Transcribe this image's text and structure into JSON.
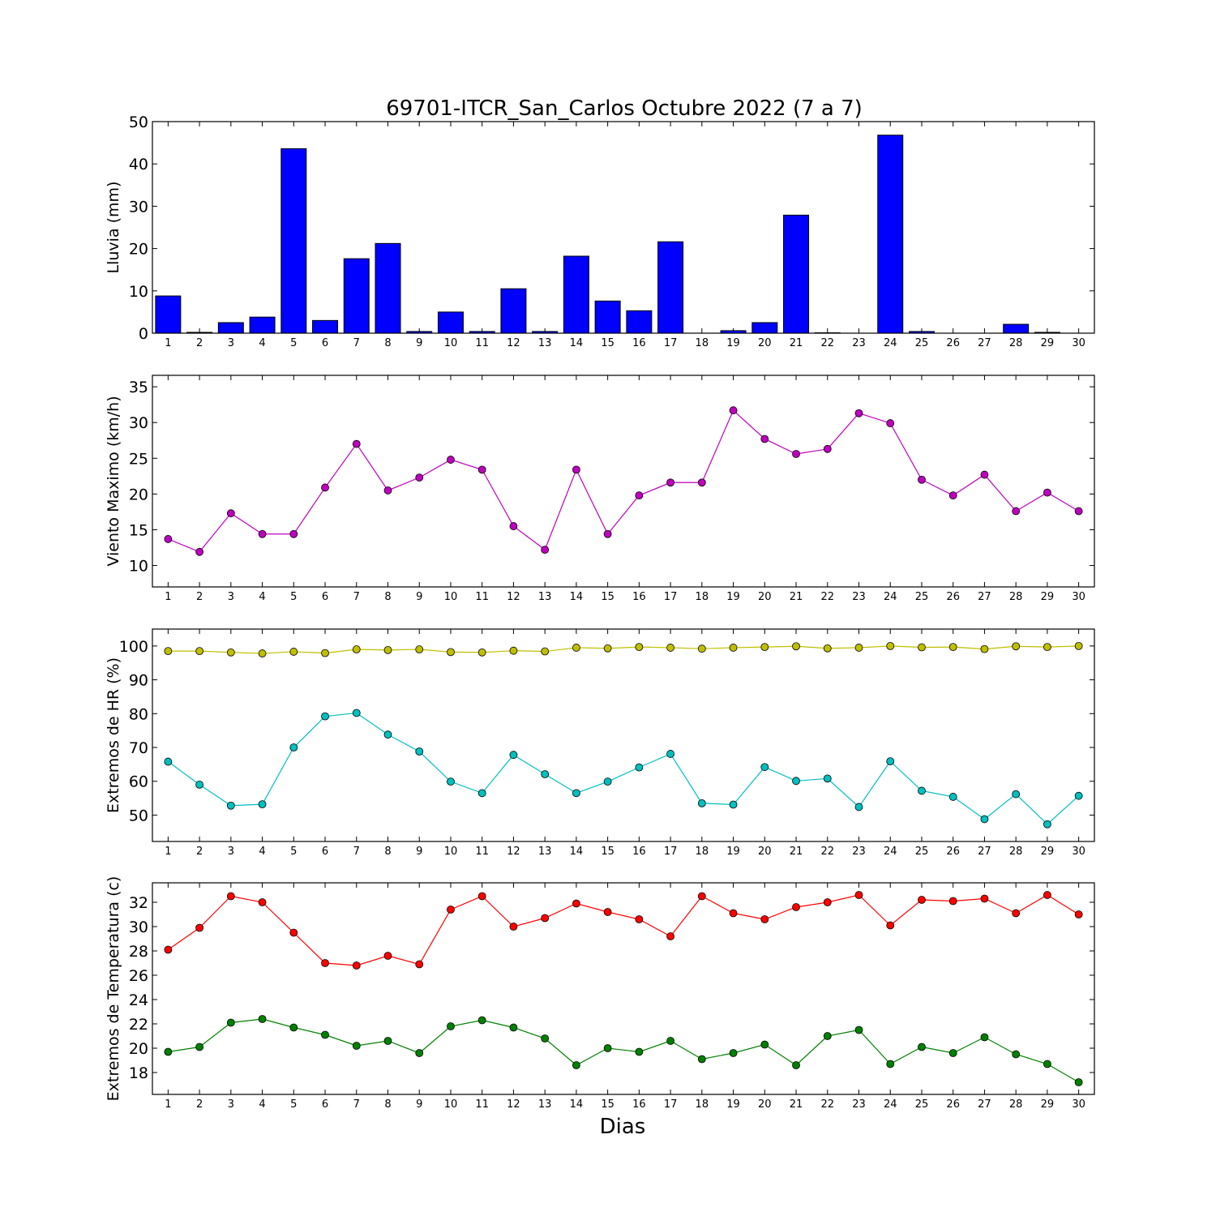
{
  "chart_data": [
    {
      "type": "bar",
      "title": "69701-ITCR_San_Carlos Octubre 2022  (7 a 7)",
      "ylabel": "Lluvia (mm)",
      "xlabel": "",
      "categories": [
        1,
        2,
        3,
        4,
        5,
        6,
        7,
        8,
        9,
        10,
        11,
        12,
        13,
        14,
        15,
        16,
        17,
        18,
        19,
        20,
        21,
        22,
        23,
        24,
        25,
        26,
        27,
        28,
        29,
        30
      ],
      "ylim": [
        0,
        50
      ],
      "yticks": [
        0,
        10,
        20,
        30,
        40,
        50
      ],
      "series": [
        {
          "color": "#0000ff",
          "values": [
            8.8,
            0.2,
            2.5,
            3.8,
            43.6,
            3.0,
            17.6,
            21.2,
            0.4,
            5.0,
            0.4,
            10.5,
            0.4,
            18.2,
            7.6,
            5.3,
            21.6,
            0.0,
            0.6,
            2.5,
            27.9,
            0.1,
            0.0,
            46.8,
            0.4,
            0.0,
            0.0,
            2.1,
            0.2,
            0.0
          ]
        }
      ],
      "grid": false
    },
    {
      "type": "line",
      "title": "",
      "ylabel": "Viento Maximo (km/h)",
      "xlabel": "",
      "x": [
        1,
        2,
        3,
        4,
        5,
        6,
        7,
        8,
        9,
        10,
        11,
        12,
        13,
        14,
        15,
        16,
        17,
        18,
        19,
        20,
        21,
        22,
        23,
        24,
        25,
        26,
        27,
        28,
        29,
        30
      ],
      "ylim": [
        7,
        36.6
      ],
      "yticks": [
        10,
        15,
        20,
        25,
        30,
        35
      ],
      "series": [
        {
          "color": "#bf00bf",
          "values": [
            13.7,
            11.9,
            17.3,
            14.4,
            14.4,
            20.9,
            27.0,
            20.5,
            22.3,
            24.8,
            23.4,
            15.5,
            12.2,
            23.4,
            14.4,
            19.8,
            21.6,
            21.6,
            31.7,
            27.7,
            25.6,
            26.3,
            31.3,
            29.9,
            22.0,
            19.8,
            22.7,
            17.6,
            20.2,
            17.6
          ]
        }
      ],
      "grid": false
    },
    {
      "type": "line",
      "title": "",
      "ylabel": "Extremos de HR (%)",
      "xlabel": "",
      "x": [
        1,
        2,
        3,
        4,
        5,
        6,
        7,
        8,
        9,
        10,
        11,
        12,
        13,
        14,
        15,
        16,
        17,
        18,
        19,
        20,
        21,
        22,
        23,
        24,
        25,
        26,
        27,
        28,
        29,
        30
      ],
      "ylim": [
        42.2,
        105
      ],
      "yticks": [
        50,
        60,
        70,
        80,
        90,
        100
      ],
      "series": [
        {
          "color": "#bfbf00",
          "values": [
            98.5,
            98.5,
            98.1,
            97.8,
            98.3,
            97.9,
            99.0,
            98.8,
            99.0,
            98.2,
            98.1,
            98.6,
            98.4,
            99.5,
            99.3,
            99.7,
            99.5,
            99.2,
            99.5,
            99.7,
            99.9,
            99.3,
            99.5,
            100.0,
            99.6,
            99.7,
            99.1,
            99.9,
            99.7,
            100.0
          ]
        },
        {
          "color": "#00bfbf",
          "values": [
            65.8,
            59.0,
            52.8,
            53.2,
            70.0,
            79.2,
            80.2,
            73.8,
            68.8,
            59.9,
            56.5,
            67.8,
            62.1,
            56.5,
            59.9,
            64.1,
            68.1,
            53.5,
            53.1,
            64.2,
            60.1,
            60.8,
            52.4,
            65.9,
            57.2,
            55.4,
            48.8,
            56.2,
            47.3,
            55.7
          ]
        }
      ],
      "grid": false
    },
    {
      "type": "line",
      "title": "",
      "ylabel": "Extremos de Temperatura (c)",
      "xlabel": "Dias",
      "x": [
        1,
        2,
        3,
        4,
        5,
        6,
        7,
        8,
        9,
        10,
        11,
        12,
        13,
        14,
        15,
        16,
        17,
        18,
        19,
        20,
        21,
        22,
        23,
        24,
        25,
        26,
        27,
        28,
        29,
        30
      ],
      "ylim": [
        16.2,
        33.6
      ],
      "yticks": [
        18,
        20,
        22,
        24,
        26,
        28,
        30,
        32
      ],
      "series": [
        {
          "color": "#ff0000",
          "values": [
            28.1,
            29.9,
            32.5,
            32.0,
            29.5,
            27.0,
            26.8,
            27.6,
            26.9,
            31.4,
            32.5,
            30.0,
            30.7,
            31.9,
            31.2,
            30.6,
            29.2,
            32.5,
            31.1,
            30.6,
            31.6,
            32.0,
            32.6,
            30.1,
            32.2,
            32.1,
            32.3,
            31.1,
            32.6,
            31.0
          ]
        },
        {
          "color": "#008000",
          "values": [
            19.7,
            20.1,
            22.1,
            22.4,
            21.7,
            21.1,
            20.2,
            20.6,
            19.6,
            21.8,
            22.3,
            21.7,
            20.8,
            18.6,
            20.0,
            19.7,
            20.6,
            19.1,
            19.6,
            20.3,
            18.6,
            21.0,
            21.5,
            18.7,
            20.1,
            19.6,
            20.9,
            19.5,
            18.7,
            17.2
          ]
        }
      ],
      "grid": false
    }
  ]
}
